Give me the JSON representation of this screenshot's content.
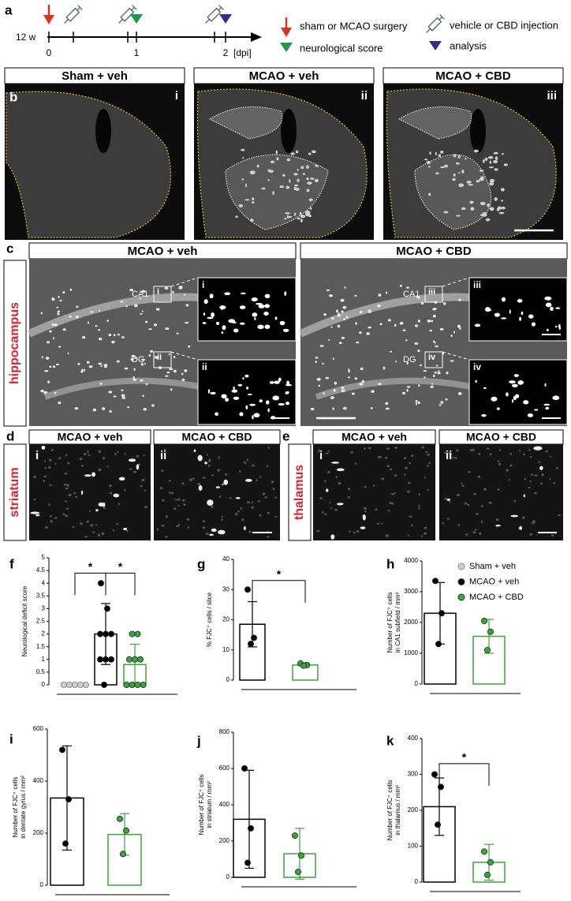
{
  "panel_a": {
    "label": "a",
    "age": "12 w",
    "timeline_ticks": [
      "0",
      "1",
      "2"
    ],
    "unit": "[dpi]",
    "legend": [
      "sham or MCAO surgery",
      "neurological score",
      "vehicle or CBD injection",
      "analysis"
    ]
  },
  "panel_b": {
    "label": "b",
    "images": [
      {
        "title": "Sham + veh",
        "roman": "i"
      },
      {
        "title": "MCAO + veh",
        "roman": "ii"
      },
      {
        "title": "MCAO + CBD",
        "roman": "iii"
      }
    ]
  },
  "panel_c": {
    "label": "c",
    "region": "hippocampus",
    "images": [
      {
        "title": "MCAO + veh",
        "ca1": "CA1",
        "dg": "DG",
        "insets": [
          "i",
          "ii"
        ]
      },
      {
        "title": "MCAO + CBD",
        "ca1": "CA1",
        "dg": "DG",
        "insets": [
          "iii",
          "iv"
        ]
      }
    ]
  },
  "panel_d": {
    "label": "d",
    "region": "striatum",
    "images": [
      {
        "title": "MCAO + veh",
        "roman": "i"
      },
      {
        "title": "MCAO + CBD",
        "roman": "ii"
      }
    ]
  },
  "panel_e": {
    "label": "e",
    "region": "thalamus",
    "images": [
      {
        "title": "MCAO + veh",
        "roman": "i"
      },
      {
        "title": "MCAO + CBD",
        "roman": "ii"
      }
    ]
  },
  "legend": [
    {
      "label": "Sham + veh",
      "color": "#d0d0d0"
    },
    {
      "label": "MCAO + veh",
      "color": "#000000"
    },
    {
      "label": "MCAO + CBD",
      "color": "#3aa63a"
    }
  ],
  "chart_data": [
    {
      "type": "bar",
      "label": "f",
      "ylabel": [
        "Neurological deficit score"
      ],
      "ylim": [
        0,
        5
      ],
      "yticks": [
        0,
        0.5,
        1,
        1.5,
        2,
        2.5,
        3,
        3.5,
        4,
        4.5,
        5
      ],
      "groups": [
        {
          "color": "#d0d0d0",
          "value": 0,
          "error": 0,
          "points": [
            0,
            0,
            0,
            0,
            0
          ]
        },
        {
          "color": "#000000",
          "value": 2,
          "error": 1.2,
          "points": [
            4,
            3,
            2,
            2,
            2,
            1,
            1,
            1,
            0
          ]
        },
        {
          "color": "#3aa63a",
          "value": 0.8,
          "error": 0.8,
          "points": [
            2,
            2,
            1,
            1,
            1,
            0,
            0,
            0,
            0
          ]
        }
      ],
      "annotations": [
        "*",
        "*"
      ]
    },
    {
      "type": "bar",
      "label": "g",
      "ylabel": [
        "% FJC⁺ cells / slice"
      ],
      "ylim": [
        0,
        40
      ],
      "yticks": [
        0,
        10,
        20,
        30,
        40
      ],
      "groups": [
        {
          "color": "#000000",
          "value": 18.5,
          "error": 7.5,
          "points": [
            30,
            14,
            12
          ]
        },
        {
          "color": "#3aa63a",
          "value": 5,
          "error": 0.5,
          "points": [
            5.5,
            5,
            4.8
          ]
        }
      ],
      "annotations": [
        "*"
      ]
    },
    {
      "type": "bar",
      "label": "h",
      "ylabel": [
        "Number of FJC⁺ cells",
        "in CA1 subfield / mm²"
      ],
      "ylim": [
        0,
        4000
      ],
      "yticks": [
        0,
        1000,
        2000,
        3000,
        4000
      ],
      "groups": [
        {
          "color": "#000000",
          "value": 2300,
          "error": 1000,
          "points": [
            3350,
            2300,
            1300
          ]
        },
        {
          "color": "#3aa63a",
          "value": 1550,
          "error": 550,
          "points": [
            2050,
            1700,
            1100
          ]
        }
      ],
      "annotations": []
    },
    {
      "type": "bar",
      "label": "i",
      "ylabel": [
        "Number of FJC⁺ cells",
        "in dentate gyrus / mm²"
      ],
      "ylim": [
        0,
        600
      ],
      "yticks": [
        0,
        200,
        400,
        600
      ],
      "groups": [
        {
          "color": "#000000",
          "value": 335,
          "error": 200,
          "points": [
            520,
            330,
            160
          ]
        },
        {
          "color": "#3aa63a",
          "value": 195,
          "error": 80,
          "points": [
            255,
            210,
            120
          ]
        }
      ],
      "annotations": []
    },
    {
      "type": "bar",
      "label": "j",
      "ylabel": [
        "Number of FJC⁺ cells",
        "in striatum / mm²"
      ],
      "ylim": [
        0,
        800
      ],
      "yticks": [
        0,
        200,
        400,
        600,
        800
      ],
      "groups": [
        {
          "color": "#000000",
          "value": 320,
          "error": 270,
          "points": [
            600,
            270,
            80
          ]
        },
        {
          "color": "#3aa63a",
          "value": 130,
          "error": 140,
          "points": [
            230,
            120,
            30
          ]
        }
      ],
      "annotations": []
    },
    {
      "type": "bar",
      "label": "k",
      "ylabel": [
        "Number of FJC⁺ cells",
        "in thalamus / mm²"
      ],
      "ylim": [
        0,
        400
      ],
      "yticks": [
        0,
        100,
        200,
        300,
        400
      ],
      "groups": [
        {
          "color": "#000000",
          "value": 210,
          "error": 80,
          "points": [
            300,
            265,
            160
          ]
        },
        {
          "color": "#3aa63a",
          "value": 55,
          "error": 50,
          "points": [
            85,
            55,
            20
          ]
        }
      ],
      "annotations": [
        "*"
      ]
    }
  ]
}
